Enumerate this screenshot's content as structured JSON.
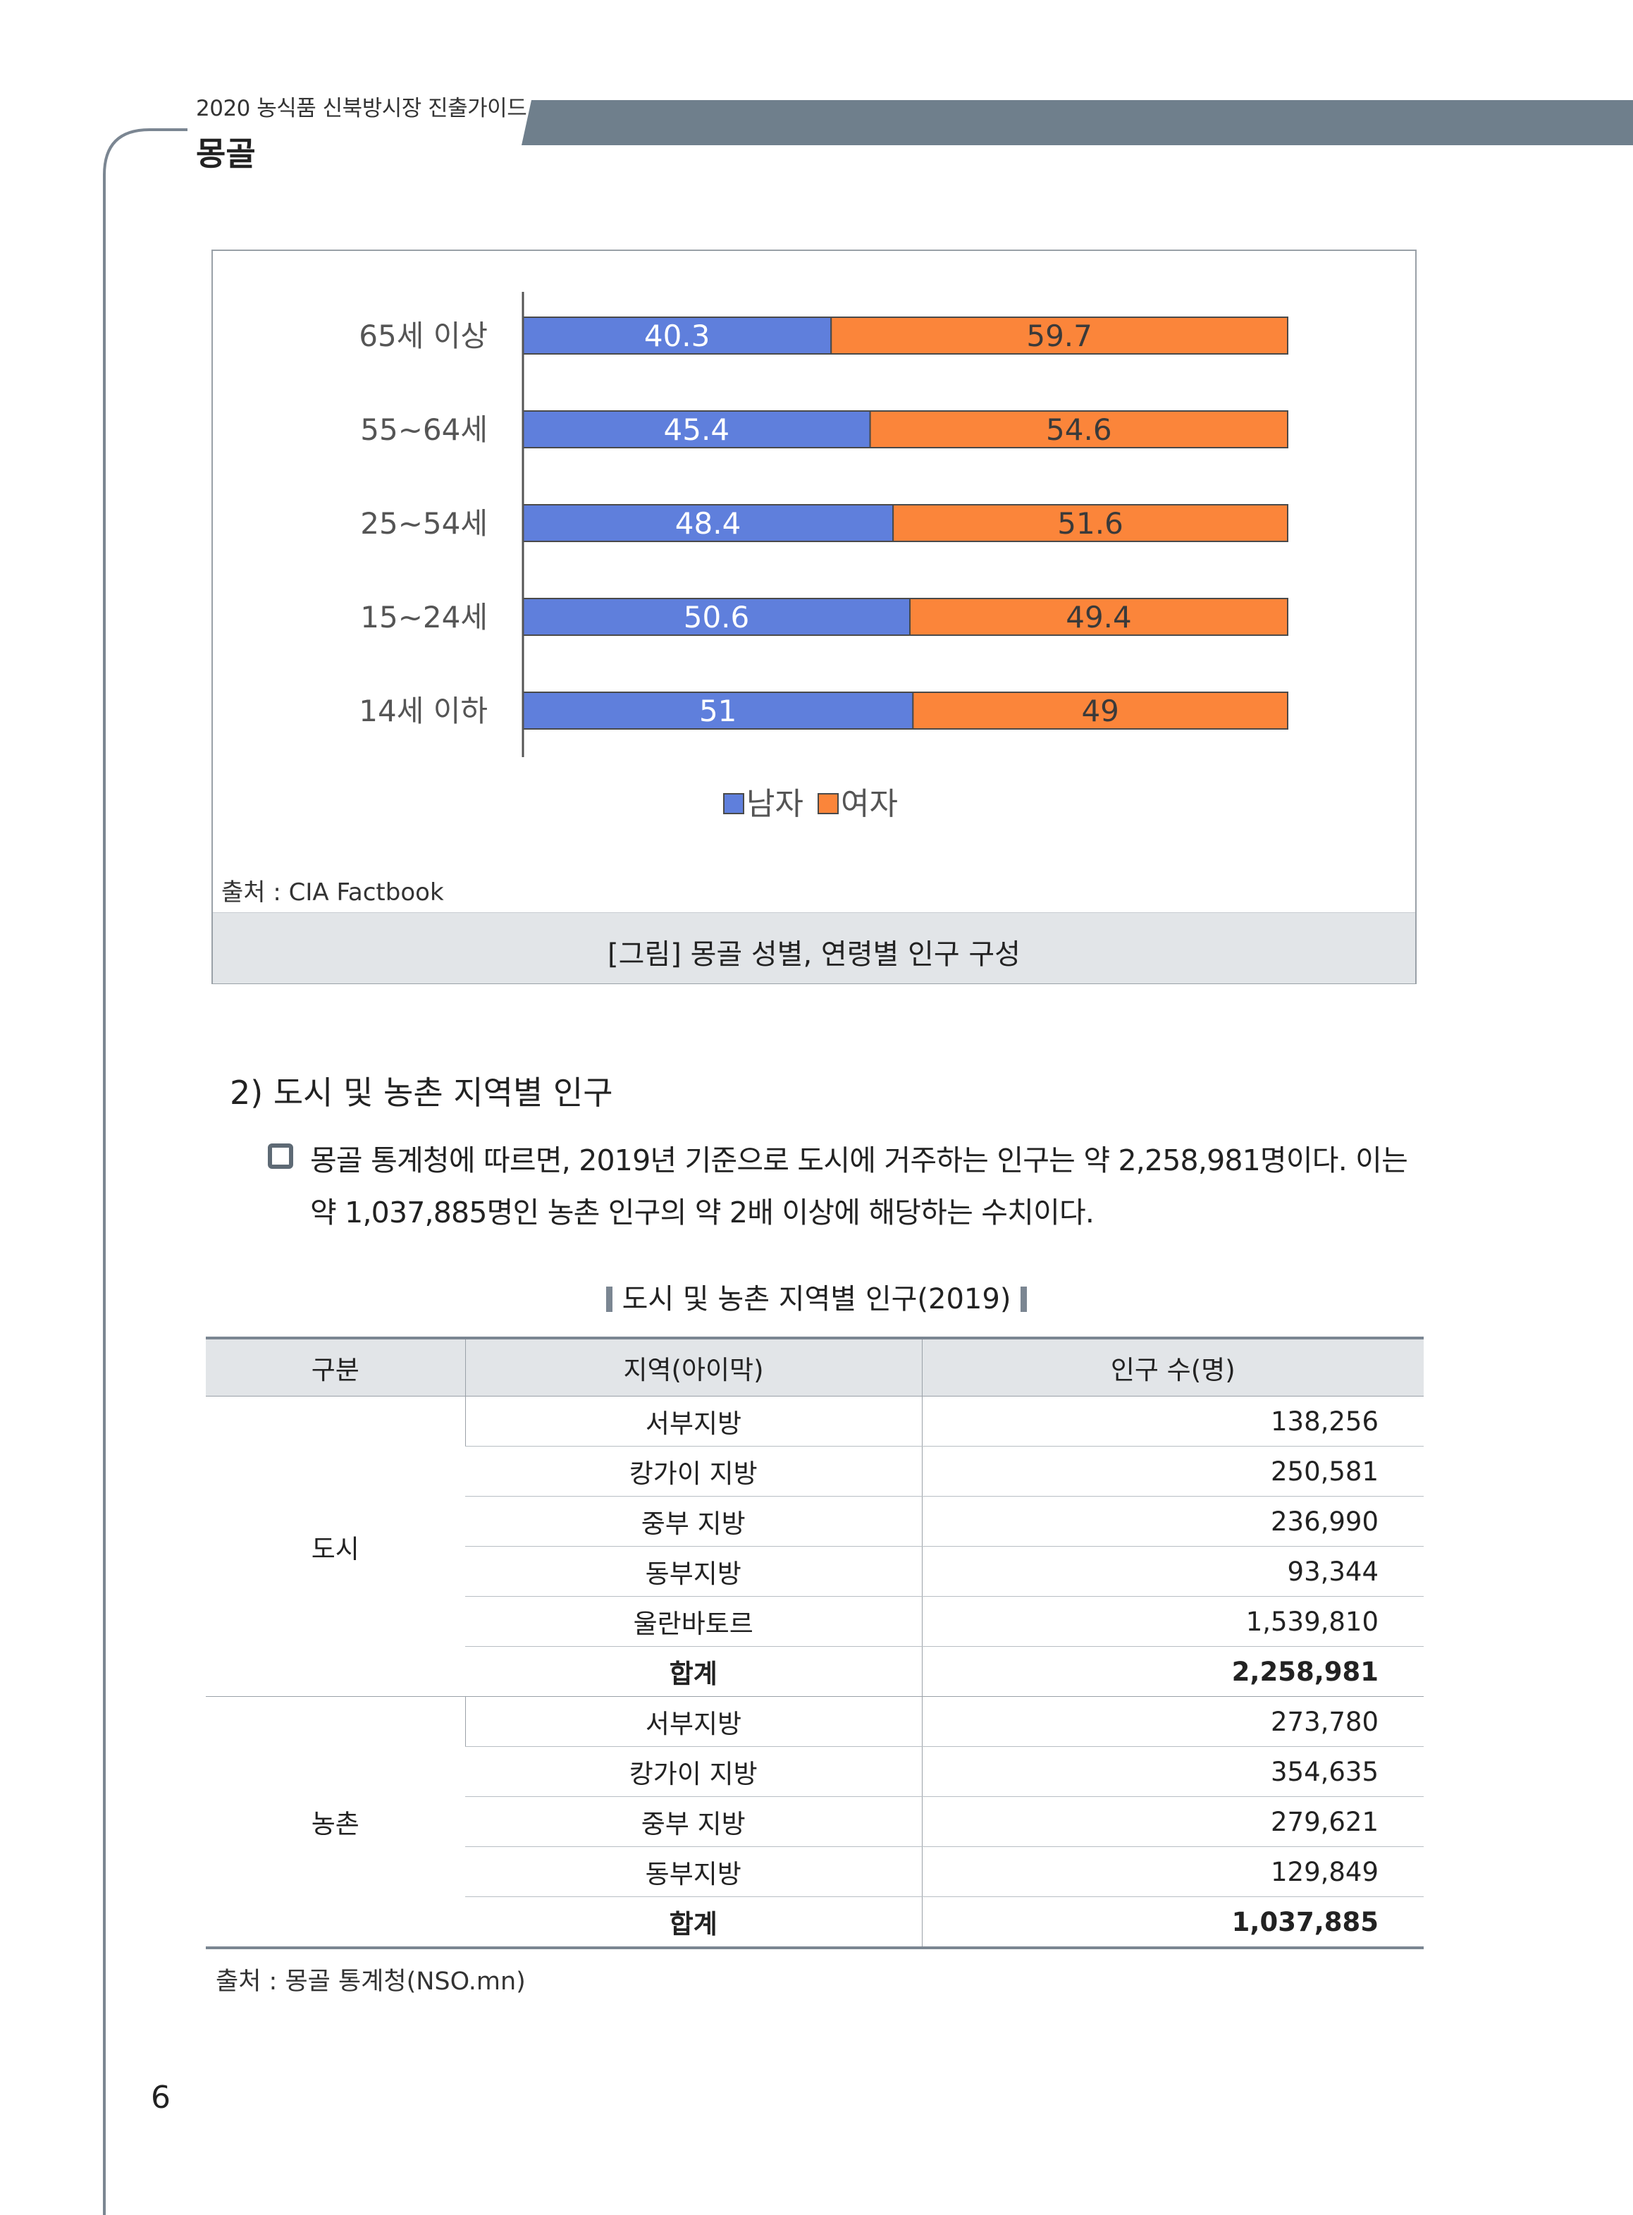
{
  "header": {
    "guide_title": "2020 농식품 신북방시장 진출가이드",
    "country": "몽골"
  },
  "figure": {
    "source": "출처 : CIA Factbook",
    "caption": "[그림] 몽골 성별, 연령별 인구 구성"
  },
  "chart_data": {
    "type": "bar",
    "stacked": true,
    "orientation": "horizontal",
    "categories": [
      "65세 이상",
      "55~64세",
      "25~54세",
      "15~24세",
      "14세 이하"
    ],
    "series": [
      {
        "name": "남자",
        "values": [
          40.3,
          45.4,
          48.4,
          50.6,
          51
        ],
        "labels": [
          "40.3",
          "45.4",
          "48.4",
          "50.6",
          "51"
        ],
        "color": "#5f7fdc"
      },
      {
        "name": "여자",
        "values": [
          59.7,
          54.6,
          51.6,
          49.4,
          49
        ],
        "labels": [
          "59.7",
          "54.6",
          "51.6",
          "49.4",
          "49"
        ],
        "color": "#fb853a"
      }
    ],
    "xlim": [
      0,
      100
    ],
    "legend": "bottom",
    "grid": false
  },
  "section": {
    "heading": "2) 도시 및 농촌 지역별 인구",
    "paragraph_line1": "몽골 통계청에 따르면, 2019년 기준으로 도시에 거주하는 인구는 약 2,258,981명이다. 이는",
    "paragraph_line2": "약 1,037,885명인 농촌 인구의 약 2배 이상에 해당하는 수치이다."
  },
  "table": {
    "title": "도시 및 농촌 지역별 인구(2019)",
    "headers": [
      "구분",
      "지역(아이막)",
      "인구 수(명)"
    ],
    "groups": [
      {
        "name": "도시",
        "rows": [
          {
            "region": "서부지방",
            "count": "138,256"
          },
          {
            "region": "캉가이 지방",
            "count": "250,581"
          },
          {
            "region": "중부 지방",
            "count": "236,990"
          },
          {
            "region": "동부지방",
            "count": "93,344"
          },
          {
            "region": "울란바토르",
            "count": "1,539,810"
          },
          {
            "region": "합계",
            "count": "2,258,981"
          }
        ]
      },
      {
        "name": "농촌",
        "rows": [
          {
            "region": "서부지방",
            "count": "273,780"
          },
          {
            "region": "캉가이 지방",
            "count": "354,635"
          },
          {
            "region": "중부 지방",
            "count": "279,621"
          },
          {
            "region": "동부지방",
            "count": "129,849"
          },
          {
            "region": "합계",
            "count": "1,037,885"
          }
        ]
      }
    ],
    "source": "출처 : 몽골 통계청(NSO.mn)"
  },
  "page_number": "6",
  "colors": {
    "header_bar": "#6f7f8c",
    "frame_line": "#7b8692",
    "caption_bg": "#e2e5e8"
  }
}
